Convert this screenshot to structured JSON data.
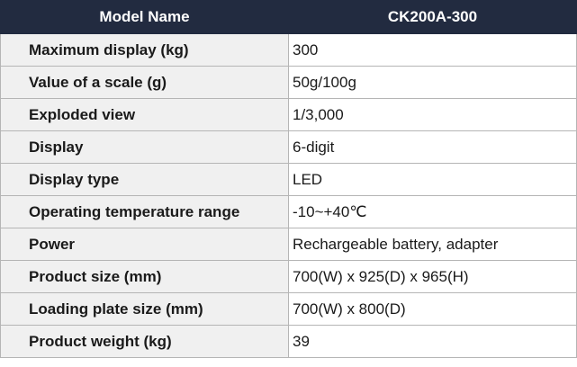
{
  "table": {
    "header": [
      "Model Name",
      "CK200A-300"
    ],
    "rows": [
      [
        "Maximum display (kg)",
        "300"
      ],
      [
        "Value of a scale (g)",
        "50g/100g"
      ],
      [
        "Exploded view",
        "1/3,000"
      ],
      [
        "Display",
        "6-digit"
      ],
      [
        "Display type",
        "LED"
      ],
      [
        "Operating temperature range",
        "-10~+40℃"
      ],
      [
        "Power",
        "Rechargeable battery, adapter"
      ],
      [
        "Product size (mm)",
        "700(W) x 925(D) x 965(H)"
      ],
      [
        "Loading plate size (mm)",
        "700(W) x 800(D)"
      ],
      [
        "Product weight (kg)",
        "39"
      ]
    ]
  }
}
